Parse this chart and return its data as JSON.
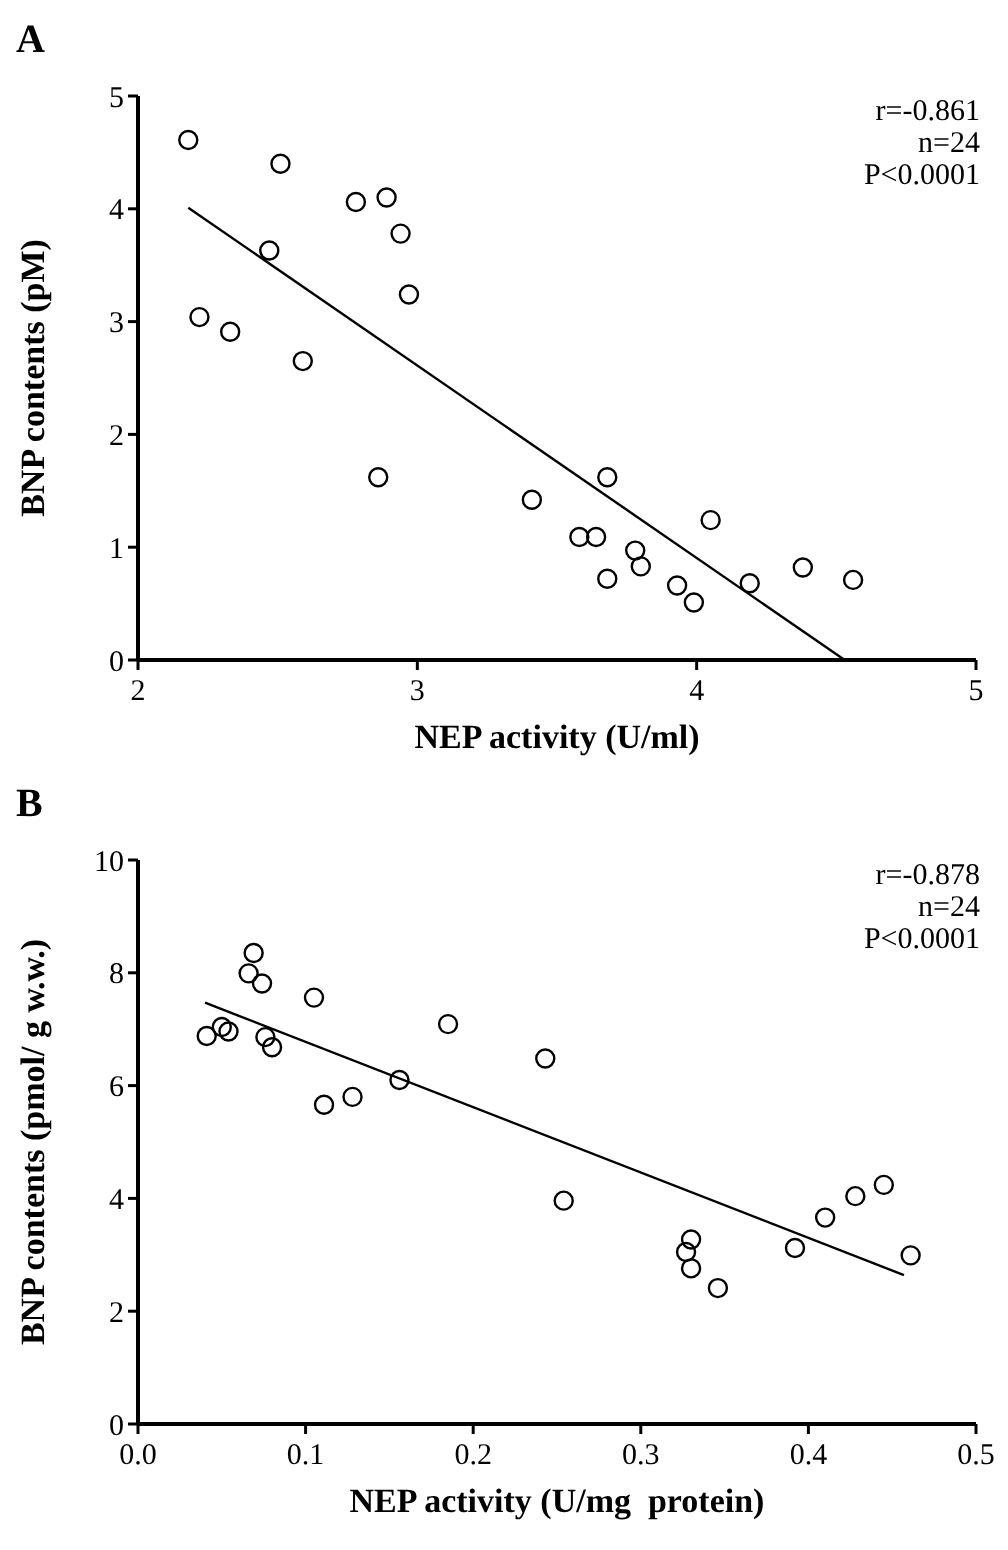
{
  "chart_data": [
    {
      "type": "scatter",
      "title": "A",
      "xlabel": "NEP activity (U/ml)",
      "ylabel": "BNP contents (pM)",
      "xlim": [
        2,
        5
      ],
      "xticks": [
        2,
        3,
        4,
        5
      ],
      "ylim": [
        0,
        5
      ],
      "yticks": [
        0,
        1,
        2,
        3,
        4,
        5
      ],
      "grid": false,
      "marker": "circle",
      "annotations": [
        "r=-0.861",
        "n=24",
        "P<0.0001"
      ],
      "series": [
        {
          "color": "#000000",
          "x": [
            2.18,
            2.51,
            2.78,
            2.89,
            2.94,
            2.97,
            2.47,
            2.22,
            2.33,
            2.59,
            2.86,
            3.41,
            3.68,
            3.58,
            3.64,
            3.78,
            3.8,
            3.68,
            4.05,
            3.93,
            3.99,
            4.19,
            4.38,
            4.56
          ],
          "values": [
            4.61,
            4.4,
            4.06,
            4.1,
            3.78,
            3.24,
            3.63,
            3.04,
            2.91,
            2.65,
            1.62,
            1.42,
            1.62,
            1.09,
            1.09,
            0.97,
            0.83,
            0.72,
            1.24,
            0.66,
            0.51,
            0.68,
            0.82,
            0.71
          ]
        },
        {
          "type": "line",
          "color": "#000000",
          "marker": "none",
          "line_style": "solid",
          "x": [
            2.18,
            4.53
          ],
          "values": [
            4.01,
            0
          ]
        }
      ]
    },
    {
      "type": "scatter",
      "title": "B",
      "xlabel": "NEP activity (U/mg  protein)",
      "ylabel": "BNP contents (pmol/ g w.w.)",
      "xlim": [
        0,
        0.5
      ],
      "xticks": [
        {
          "value": 0,
          "label": "0.0"
        },
        0.1,
        0.2,
        0.3,
        0.4,
        0.5
      ],
      "ylim": [
        0,
        10
      ],
      "yticks": [
        0,
        2,
        4,
        6,
        8,
        10
      ],
      "grid": false,
      "marker": "circle",
      "annotations": [
        "r=-0.878",
        "n=24",
        "P<0.0001"
      ],
      "series": [
        {
          "color": "#000000",
          "x": [
            0.041,
            0.05,
            0.054,
            0.066,
            0.069,
            0.074,
            0.076,
            0.08,
            0.105,
            0.111,
            0.128,
            0.156,
            0.185,
            0.243,
            0.254,
            0.327,
            0.33,
            0.33,
            0.346,
            0.392,
            0.41,
            0.428,
            0.445,
            0.461
          ],
          "values": [
            6.88,
            7.04,
            6.96,
            7.99,
            8.35,
            7.81,
            6.86,
            6.68,
            7.56,
            5.66,
            5.8,
            6.1,
            7.09,
            6.48,
            3.96,
            3.05,
            3.27,
            2.76,
            2.41,
            3.12,
            3.66,
            4.04,
            4.24,
            2.99
          ]
        },
        {
          "type": "line",
          "color": "#000000",
          "marker": "none",
          "line_style": "solid",
          "x": [
            0.04,
            0.457
          ],
          "values": [
            7.47,
            2.64
          ]
        }
      ]
    }
  ]
}
